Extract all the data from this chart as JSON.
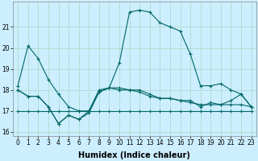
{
  "xlabel": "Humidex (Indice chaleur)",
  "background_color": "#cceeff",
  "grid_color": "#aaddcc",
  "line_color": "#006666",
  "x": [
    0,
    1,
    2,
    3,
    4,
    5,
    6,
    7,
    8,
    9,
    10,
    11,
    12,
    13,
    14,
    15,
    16,
    17,
    18,
    19,
    20,
    21,
    22,
    23
  ],
  "series": [
    [
      18.2,
      20.1,
      19.5,
      18.5,
      17.8,
      17.2,
      17.0,
      17.0,
      17.9,
      18.1,
      19.3,
      21.7,
      21.8,
      21.7,
      21.2,
      21.0,
      20.8,
      19.7,
      18.2,
      18.2,
      18.3,
      18.0,
      17.8,
      17.2
    ],
    [
      18.0,
      17.7,
      17.7,
      17.2,
      16.4,
      16.8,
      16.6,
      17.0,
      18.0,
      18.1,
      18.0,
      18.0,
      18.0,
      17.8,
      17.6,
      17.6,
      17.5,
      17.5,
      17.2,
      17.4,
      17.3,
      17.5,
      17.8,
      17.2
    ],
    [
      18.0,
      17.7,
      17.7,
      17.2,
      16.4,
      16.8,
      16.6,
      16.9,
      17.9,
      18.1,
      18.1,
      18.0,
      17.9,
      17.7,
      17.6,
      17.6,
      17.5,
      17.4,
      17.3,
      17.3,
      17.3,
      17.3,
      17.3,
      17.2
    ],
    [
      17.0,
      17.0,
      17.0,
      17.0,
      17.0,
      17.0,
      17.0,
      17.0,
      17.0,
      17.0,
      17.0,
      17.0,
      17.0,
      17.0,
      17.0,
      17.0,
      17.0,
      17.0,
      17.0,
      17.0,
      17.0,
      17.0,
      17.0,
      17.0
    ]
  ],
  "ylim": [
    15.8,
    22.2
  ],
  "yticks": [
    16,
    17,
    18,
    19,
    20,
    21
  ],
  "xticks": [
    0,
    1,
    2,
    3,
    4,
    5,
    6,
    7,
    8,
    9,
    10,
    11,
    12,
    13,
    14,
    15,
    16,
    17,
    18,
    19,
    20,
    21,
    22,
    23
  ],
  "marker": "+",
  "tick_fontsize": 5.5,
  "xlabel_fontsize": 7.0
}
